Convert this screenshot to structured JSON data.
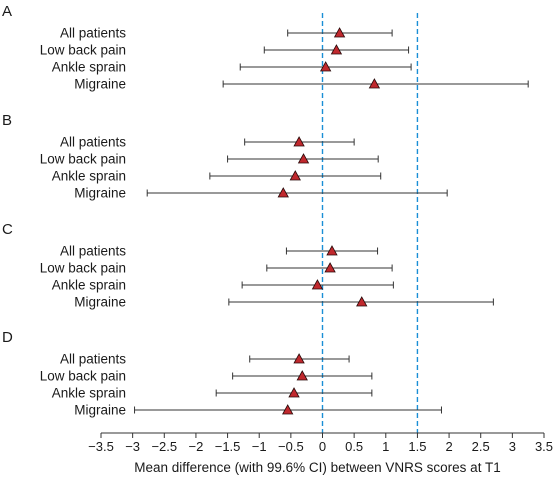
{
  "chart_data": {
    "type": "forest",
    "xlabel": "Mean difference (with 99.6% CI) between VNRS scores at T1",
    "xlim": [
      -3.5,
      3.5
    ],
    "x_ticks": [
      -3.5,
      -3,
      -2.5,
      -2,
      -1.5,
      -1,
      -0.5,
      0,
      0.5,
      1,
      1.5,
      2,
      2.5,
      3,
      3.5
    ],
    "x_tick_labels": [
      "−3.5",
      "−3",
      "−2.5",
      "−2",
      "−1.5",
      "−1",
      "−0.5",
      "0",
      "0.5",
      "1",
      "1.5",
      "2",
      "2.5",
      "3",
      "3.5"
    ],
    "reference_lines": [
      0,
      1.5
    ],
    "marker_color": "#c0282d",
    "reference_line_color": "#1a8fd6",
    "panels": [
      {
        "label": "A",
        "rows": [
          {
            "name": "All patients",
            "mean": 0.27,
            "lower": -0.55,
            "upper": 1.1
          },
          {
            "name": "Low back pain",
            "mean": 0.22,
            "lower": -0.92,
            "upper": 1.36
          },
          {
            "name": "Ankle sprain",
            "mean": 0.05,
            "lower": -1.3,
            "upper": 1.4
          },
          {
            "name": "Migraine",
            "mean": 0.82,
            "lower": -1.57,
            "upper": 3.25
          }
        ]
      },
      {
        "label": "B",
        "rows": [
          {
            "name": "All patients",
            "mean": -0.37,
            "lower": -1.23,
            "upper": 0.5
          },
          {
            "name": "Low back pain",
            "mean": -0.3,
            "lower": -1.5,
            "upper": 0.88
          },
          {
            "name": "Ankle sprain",
            "mean": -0.43,
            "lower": -1.78,
            "upper": 0.92
          },
          {
            "name": "Migraine",
            "mean": -0.62,
            "lower": -2.77,
            "upper": 1.97
          }
        ]
      },
      {
        "label": "C",
        "rows": [
          {
            "name": "All patients",
            "mean": 0.15,
            "lower": -0.57,
            "upper": 0.87
          },
          {
            "name": "Low back pain",
            "mean": 0.12,
            "lower": -0.88,
            "upper": 1.1
          },
          {
            "name": "Ankle sprain",
            "mean": -0.08,
            "lower": -1.27,
            "upper": 1.12
          },
          {
            "name": "Migraine",
            "mean": 0.62,
            "lower": -1.48,
            "upper": 2.7
          }
        ]
      },
      {
        "label": "D",
        "rows": [
          {
            "name": "All patients",
            "mean": -0.37,
            "lower": -1.15,
            "upper": 0.42
          },
          {
            "name": "Low back pain",
            "mean": -0.32,
            "lower": -1.42,
            "upper": 0.78
          },
          {
            "name": "Ankle sprain",
            "mean": -0.45,
            "lower": -1.68,
            "upper": 0.78
          },
          {
            "name": "Migraine",
            "mean": -0.55,
            "lower": -2.97,
            "upper": 1.88
          }
        ]
      }
    ]
  }
}
